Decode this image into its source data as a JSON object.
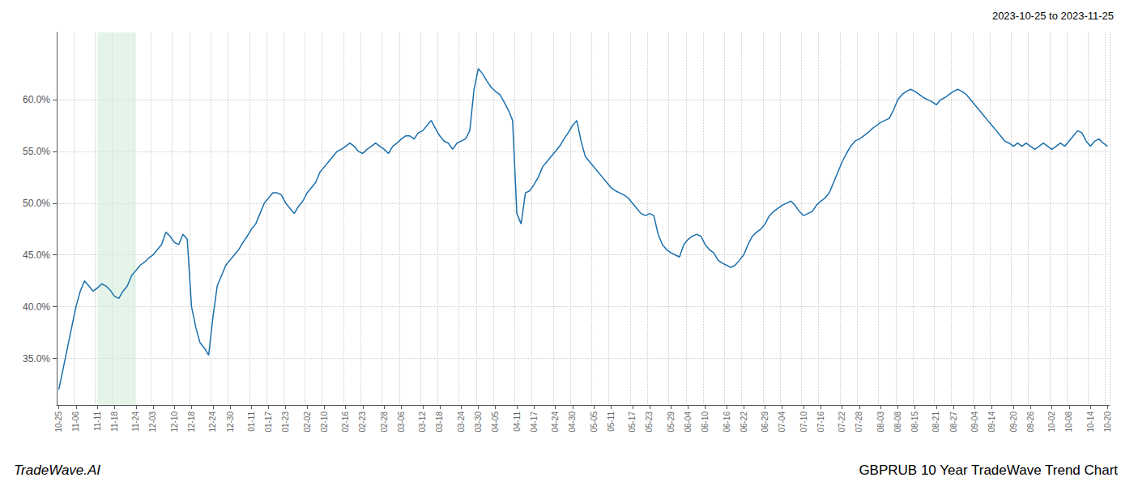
{
  "chart_data": {
    "type": "line",
    "title": "GBPRUB 10 Year TradeWave Trend Chart",
    "subtitle": "2023-10-25 to 2023-11-25",
    "annotations": [
      "TradeWave.AI"
    ],
    "color": "#1a6fad",
    "grid": true,
    "ylim": [
      0.305,
      0.665
    ],
    "yticks": [
      {
        "value": 0.35,
        "label": "35.0%"
      },
      {
        "value": 0.4,
        "label": "40.0%"
      },
      {
        "value": 0.45,
        "label": "45.0%"
      },
      {
        "value": 0.5,
        "label": "50.0%"
      },
      {
        "value": 0.55,
        "label": "55.0%"
      },
      {
        "value": 0.6,
        "label": "60.0%"
      }
    ],
    "highlight": {
      "from": "11-11",
      "to": "11-24",
      "color": "#d4edda"
    },
    "categories": [
      "10-25",
      null,
      null,
      null,
      "11-06",
      null,
      null,
      null,
      null,
      "11-11",
      null,
      null,
      null,
      "11-18",
      null,
      null,
      null,
      null,
      "11-24",
      null,
      null,
      null,
      "12-03",
      null,
      null,
      null,
      null,
      "12-10",
      null,
      null,
      null,
      "12-18",
      null,
      null,
      null,
      null,
      "12-24",
      null,
      null,
      null,
      "12-30",
      null,
      null,
      null,
      null,
      "01-11",
      null,
      null,
      null,
      "01-17",
      null,
      null,
      null,
      "01-23",
      null,
      null,
      null,
      null,
      "02-02",
      null,
      null,
      null,
      "02-10",
      null,
      null,
      null,
      null,
      "02-16",
      null,
      null,
      null,
      "02-23",
      null,
      null,
      null,
      null,
      "02-28",
      null,
      null,
      null,
      "03-06",
      null,
      null,
      null,
      null,
      "03-12",
      null,
      null,
      null,
      "03-18",
      null,
      null,
      null,
      null,
      "03-24",
      null,
      null,
      null,
      "03-30",
      null,
      null,
      null,
      "04-05",
      null,
      null,
      null,
      null,
      "04-11",
      null,
      null,
      null,
      "04-17",
      null,
      null,
      null,
      null,
      "04-24",
      null,
      null,
      null,
      "04-30",
      null,
      null,
      null,
      null,
      "05-05",
      null,
      null,
      null,
      "05-11",
      null,
      null,
      null,
      null,
      "05-17",
      null,
      null,
      null,
      "05-23",
      null,
      null,
      null,
      null,
      "05-29",
      null,
      null,
      null,
      "06-04",
      null,
      null,
      null,
      "06-10",
      null,
      null,
      null,
      null,
      "06-16",
      null,
      null,
      null,
      "06-22",
      null,
      null,
      null,
      null,
      "06-29",
      null,
      null,
      null,
      "07-04",
      null,
      null,
      null,
      null,
      "07-10",
      null,
      null,
      null,
      "07-16",
      null,
      null,
      null,
      null,
      "07-22",
      null,
      null,
      null,
      "07-28",
      null,
      null,
      null,
      null,
      "08-03",
      null,
      null,
      null,
      "08-08",
      null,
      null,
      null,
      "08-15",
      null,
      null,
      null,
      null,
      "08-21",
      null,
      null,
      null,
      "08-27",
      null,
      null,
      null,
      null,
      "09-04",
      null,
      null,
      null,
      "09-14",
      null,
      null,
      null,
      null,
      "09-20",
      null,
      null,
      null,
      "09-26",
      null,
      null,
      null,
      null,
      "10-02",
      null,
      null,
      null,
      "10-08",
      null,
      null,
      null,
      null,
      "10-14",
      null,
      null,
      null,
      "10-20"
    ],
    "values": [
      0.32,
      0.34,
      0.36,
      0.38,
      0.4,
      0.415,
      0.425,
      0.42,
      0.415,
      0.418,
      0.422,
      0.42,
      0.416,
      0.41,
      0.408,
      0.415,
      0.42,
      0.43,
      0.435,
      0.44,
      0.443,
      0.447,
      0.45,
      0.455,
      0.46,
      0.472,
      0.468,
      0.462,
      0.46,
      0.47,
      0.465,
      0.4,
      0.38,
      0.365,
      0.36,
      0.353,
      0.39,
      0.42,
      0.43,
      0.44,
      0.445,
      0.45,
      0.455,
      0.462,
      0.468,
      0.475,
      0.48,
      0.49,
      0.5,
      0.505,
      0.51,
      0.51,
      0.508,
      0.5,
      0.495,
      0.49,
      0.497,
      0.502,
      0.51,
      0.515,
      0.52,
      0.53,
      0.535,
      0.54,
      0.545,
      0.55,
      0.552,
      0.555,
      0.558,
      0.555,
      0.55,
      0.548,
      0.552,
      0.555,
      0.558,
      0.555,
      0.552,
      0.548,
      0.555,
      0.558,
      0.562,
      0.565,
      0.565,
      0.562,
      0.568,
      0.57,
      0.575,
      0.58,
      0.572,
      0.565,
      0.56,
      0.558,
      0.552,
      0.558,
      0.56,
      0.562,
      0.57,
      0.61,
      0.63,
      0.625,
      0.618,
      0.612,
      0.608,
      0.605,
      0.598,
      0.59,
      0.58,
      0.49,
      0.48,
      0.51,
      0.512,
      0.518,
      0.525,
      0.535,
      0.54,
      0.545,
      0.55,
      0.555,
      0.562,
      0.568,
      0.575,
      0.58,
      0.56,
      0.545,
      0.54,
      0.535,
      0.53,
      0.525,
      0.52,
      0.515,
      0.512,
      0.51,
      0.508,
      0.505,
      0.5,
      0.495,
      0.49,
      0.488,
      0.49,
      0.488,
      0.47,
      0.46,
      0.455,
      0.452,
      0.45,
      0.448,
      0.46,
      0.465,
      0.468,
      0.47,
      0.468,
      0.46,
      0.455,
      0.452,
      0.445,
      0.442,
      0.44,
      0.438,
      0.44,
      0.445,
      0.45,
      0.46,
      0.468,
      0.472,
      0.475,
      0.48,
      0.488,
      0.492,
      0.495,
      0.498,
      0.5,
      0.502,
      0.498,
      0.492,
      0.488,
      0.49,
      0.492,
      0.498,
      0.502,
      0.505,
      0.51,
      0.52,
      0.53,
      0.54,
      0.548,
      0.555,
      0.56,
      0.562,
      0.565,
      0.568,
      0.572,
      0.575,
      0.578,
      0.58,
      0.582,
      0.59,
      0.6,
      0.605,
      0.608,
      0.61,
      0.608,
      0.605,
      0.602,
      0.6,
      0.598,
      0.595,
      0.6,
      0.602,
      0.605,
      0.608,
      0.61,
      0.608,
      0.605,
      0.6,
      0.595,
      0.59,
      0.585,
      0.58,
      0.575,
      0.57,
      0.565,
      0.56,
      0.558,
      0.555,
      0.558,
      0.555,
      0.558,
      0.555,
      0.552,
      0.555,
      0.558,
      0.555,
      0.552,
      0.555,
      0.558,
      0.555,
      0.56,
      0.565,
      0.57,
      0.568,
      0.56,
      0.555,
      0.56,
      0.562,
      0.558,
      0.555
    ]
  }
}
